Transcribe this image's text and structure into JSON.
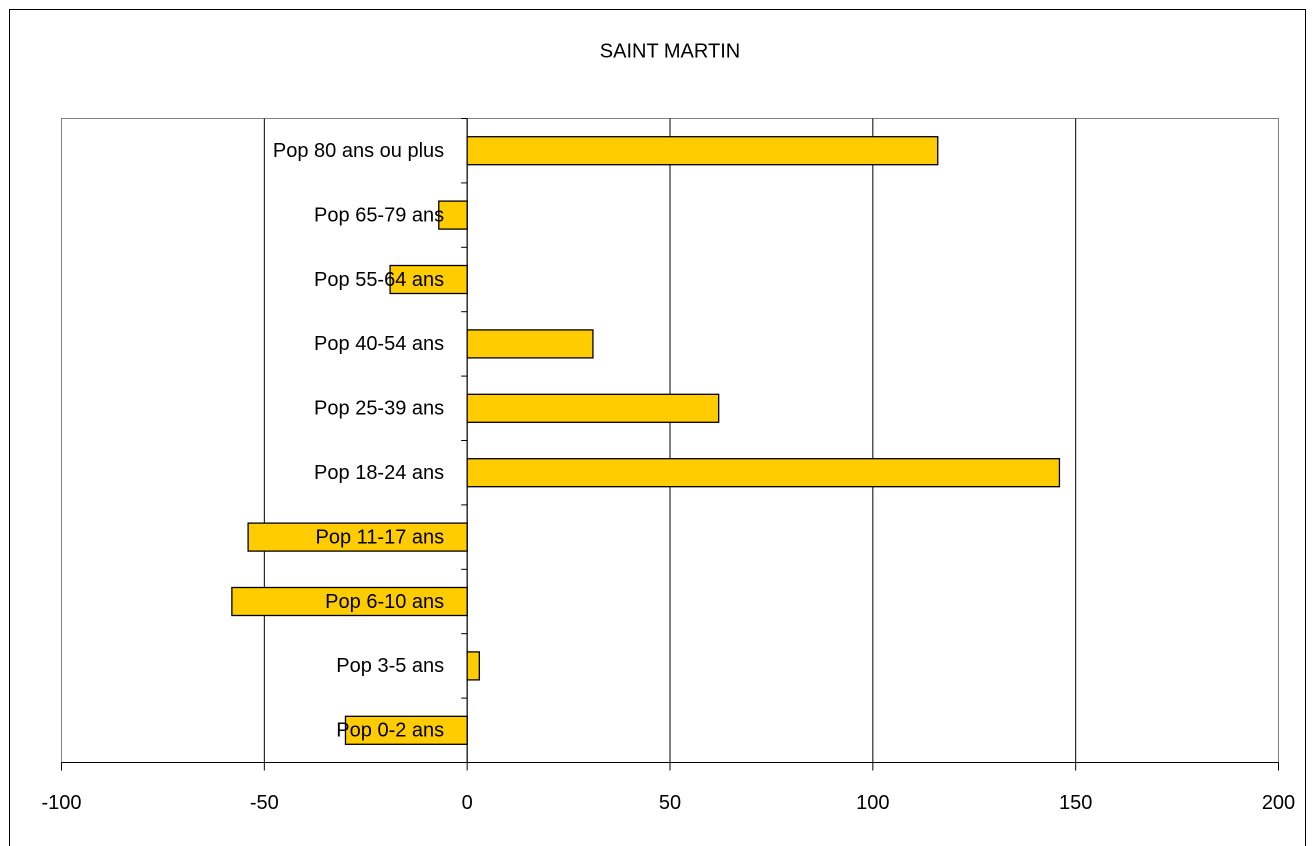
{
  "chart_data": {
    "type": "bar",
    "orientation": "horizontal",
    "title": "SAINT MARTIN",
    "categories": [
      "Pop 0-2 ans",
      "Pop 3-5 ans",
      "Pop 6-10 ans",
      "Pop 11-17 ans",
      "Pop 18-24 ans",
      "Pop 25-39 ans",
      "Pop 40-54 ans",
      "Pop 55-64 ans",
      "Pop 65-79 ans",
      "Pop 80 ans ou plus"
    ],
    "values": [
      -30,
      3,
      -58,
      -54,
      146,
      62,
      31,
      -19,
      -7,
      116
    ],
    "color": "#ffcc00",
    "xlim": [
      -100,
      200
    ],
    "xticks": [
      -100,
      -50,
      0,
      50,
      100,
      150,
      200
    ],
    "grid": true
  }
}
